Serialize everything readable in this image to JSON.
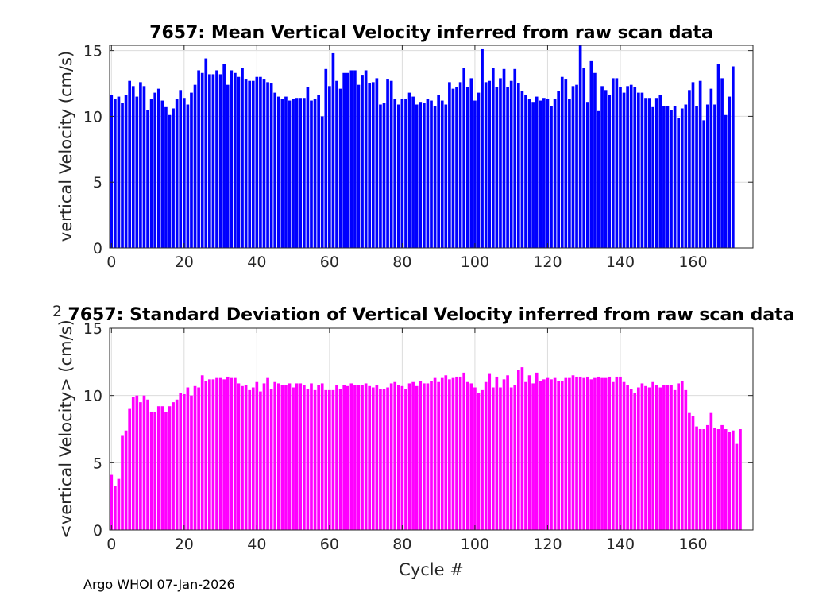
{
  "footer": "Argo WHOI 07-Jan-2026",
  "colors": {
    "mean": "#0000ff",
    "std": "#ff00ff",
    "grid": "#dcdcdc",
    "axis": "#262626"
  },
  "chart_data": [
    {
      "type": "bar",
      "title": "7657: Mean Vertical Velocity inferred from raw scan data",
      "xlabel": "",
      "ylabel": "vertical Velocity (cm/s)",
      "xlim": [
        -0.5,
        176.5
      ],
      "ylim": [
        0,
        15.4
      ],
      "xticks": [
        0,
        20,
        40,
        60,
        80,
        100,
        120,
        140,
        160
      ],
      "yticks": [
        0,
        5,
        10,
        15
      ],
      "grid": true,
      "x_start": 0,
      "values": [
        11.6,
        11.3,
        11.5,
        11.0,
        11.6,
        12.7,
        12.3,
        11.5,
        12.6,
        12.3,
        10.5,
        11.3,
        11.8,
        12.1,
        11.2,
        10.7,
        10.1,
        10.6,
        11.3,
        12.0,
        11.4,
        10.9,
        11.8,
        12.4,
        13.5,
        13.3,
        14.4,
        13.2,
        13.2,
        13.5,
        13.2,
        14.0,
        12.4,
        13.5,
        13.3,
        13.0,
        13.7,
        12.8,
        12.7,
        12.7,
        13.0,
        13.0,
        12.8,
        12.6,
        12.5,
        11.8,
        11.5,
        11.3,
        11.5,
        11.2,
        11.3,
        11.4,
        11.4,
        11.4,
        12.2,
        11.2,
        11.3,
        11.6,
        10.0,
        13.6,
        12.3,
        14.8,
        12.7,
        12.1,
        13.3,
        13.3,
        13.5,
        13.5,
        12.4,
        13.1,
        13.5,
        12.5,
        12.6,
        12.9,
        10.9,
        11.0,
        12.8,
        12.7,
        11.3,
        10.9,
        11.3,
        11.3,
        11.8,
        11.5,
        10.9,
        11.1,
        11.0,
        11.3,
        11.2,
        10.8,
        11.6,
        11.2,
        10.9,
        12.6,
        12.1,
        12.2,
        12.6,
        13.7,
        12.2,
        12.9,
        11.2,
        11.8,
        15.1,
        12.6,
        12.7,
        13.7,
        12.2,
        12.9,
        13.6,
        12.2,
        12.7,
        13.6,
        12.5,
        11.9,
        11.6,
        11.3,
        11.1,
        11.5,
        11.2,
        11.4,
        11.3,
        10.8,
        11.3,
        11.9,
        13.0,
        12.8,
        11.3,
        12.3,
        12.4,
        15.5,
        13.7,
        11.1,
        14.2,
        13.3,
        10.4,
        12.3,
        12.0,
        11.6,
        12.9,
        12.9,
        12.2,
        11.8,
        12.3,
        12.4,
        12.2,
        11.8,
        11.8,
        11.4,
        11.4,
        10.7,
        11.4,
        11.6,
        10.8,
        10.8,
        10.5,
        10.8,
        9.9,
        10.6,
        10.9,
        12.0,
        12.6,
        10.8,
        12.7,
        9.7,
        10.9,
        12.1,
        10.9,
        14.0,
        12.9,
        10.1,
        11.5,
        13.8
      ]
    },
    {
      "type": "bar",
      "title": "7657: Standard Deviation of Vertical Velocity inferred from raw scan data",
      "xlabel": "Cycle #",
      "ylabel": "<vertical Velocity> (cm/s)",
      "ylabel_superscript": "2",
      "xlim": [
        -0.5,
        176.5
      ],
      "ylim": [
        0,
        15
      ],
      "xticks": [
        0,
        20,
        40,
        60,
        80,
        100,
        120,
        140,
        160
      ],
      "yticks": [
        0,
        5,
        10,
        15
      ],
      "grid": true,
      "x_start": 0,
      "values": [
        4.1,
        3.3,
        3.8,
        7.0,
        7.4,
        9.0,
        9.9,
        10.0,
        9.5,
        10.0,
        9.7,
        8.8,
        8.8,
        9.2,
        9.2,
        8.8,
        9.2,
        9.5,
        9.7,
        10.2,
        10.1,
        10.6,
        10.0,
        10.7,
        10.6,
        11.5,
        11.1,
        11.2,
        11.2,
        11.3,
        11.3,
        11.2,
        11.4,
        11.3,
        11.3,
        10.9,
        10.7,
        10.8,
        10.4,
        10.6,
        11.0,
        10.3,
        10.9,
        11.3,
        10.5,
        11.0,
        10.9,
        10.8,
        10.8,
        10.9,
        10.6,
        10.9,
        10.9,
        10.8,
        10.5,
        10.9,
        10.4,
        10.8,
        10.9,
        10.4,
        10.4,
        10.4,
        10.8,
        10.5,
        10.8,
        10.7,
        10.9,
        10.8,
        10.8,
        10.8,
        10.9,
        10.7,
        10.6,
        10.8,
        10.5,
        10.5,
        10.6,
        10.9,
        11.0,
        10.8,
        10.7,
        10.5,
        10.9,
        11.0,
        10.7,
        11.1,
        10.9,
        10.9,
        11.1,
        11.3,
        11.0,
        11.3,
        11.5,
        11.2,
        11.3,
        11.4,
        11.4,
        11.7,
        11.0,
        10.9,
        10.6,
        10.2,
        10.4,
        11.0,
        11.6,
        10.6,
        11.4,
        10.6,
        11.2,
        11.5,
        10.6,
        10.8,
        11.9,
        12.1,
        11.0,
        11.5,
        10.9,
        11.7,
        11.1,
        11.2,
        11.3,
        11.2,
        11.3,
        11.1,
        11.1,
        11.3,
        11.3,
        11.5,
        11.4,
        11.4,
        11.3,
        11.4,
        11.2,
        11.3,
        11.4,
        11.3,
        11.3,
        11.4,
        11.0,
        11.4,
        11.4,
        11.0,
        10.8,
        10.5,
        10.2,
        10.6,
        10.9,
        10.7,
        10.6,
        11.0,
        10.8,
        10.6,
        10.8,
        10.8,
        10.8,
        10.4,
        10.9,
        11.1,
        10.4,
        8.7,
        8.5,
        7.7,
        7.5,
        7.5,
        7.8,
        8.7,
        7.6,
        7.5,
        7.8,
        7.5,
        7.3,
        7.4,
        6.4,
        7.5
      ]
    }
  ]
}
